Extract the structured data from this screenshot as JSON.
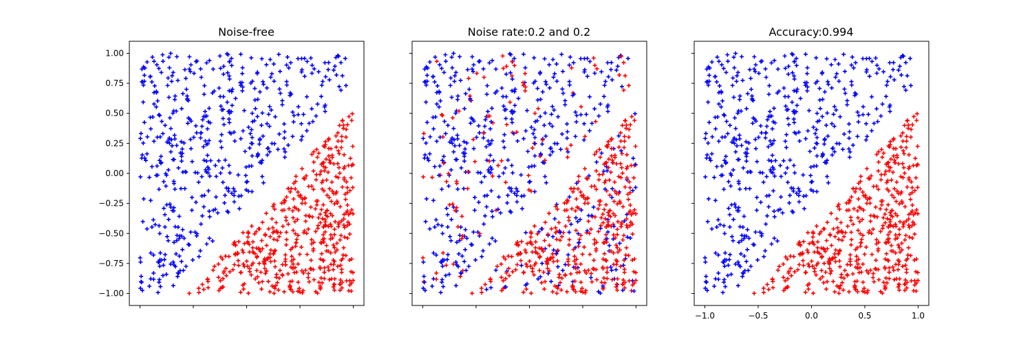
{
  "colors": {
    "class_blue": "#0000ff",
    "class_red": "#ff0000"
  },
  "chart_data": [
    {
      "type": "scatter",
      "title": "Noise-free",
      "marker": "plus",
      "xlim": [
        -1.1,
        1.1
      ],
      "ylim": [
        -1.1,
        1.1
      ],
      "x_ticks": [
        -1.0,
        -0.5,
        0.0,
        0.5,
        1.0
      ],
      "x_tick_labels_shown": false,
      "y_ticks": [
        -1.0,
        -0.75,
        -0.5,
        -0.25,
        0.0,
        0.25,
        0.5,
        0.75,
        1.0
      ],
      "y_tick_labels": [
        "−1.00",
        "−0.75",
        "−0.50",
        "−0.25",
        "0.00",
        "0.25",
        "0.50",
        "0.75",
        "1.00"
      ],
      "grid": false,
      "class_boundary": {
        "description": "y = x - 0.35",
        "gap": "no points between y = x - 0.45 and y = x - 0.25"
      },
      "series": [
        {
          "color": "#0000ff",
          "region": "above line y = x - 0.25",
          "approx_count": 500
        },
        {
          "color": "#ff0000",
          "region": "below line y = x - 0.45",
          "approx_count": 500
        }
      ],
      "point_seed": 11,
      "label_noise": [
        0,
        0
      ]
    },
    {
      "type": "scatter",
      "title": "Noise rate:0.2 and 0.2",
      "marker": "plus",
      "xlim": [
        -1.1,
        1.1
      ],
      "ylim": [
        -1.1,
        1.1
      ],
      "x_ticks": [
        -1.0,
        -0.5,
        0.0,
        0.5,
        1.0
      ],
      "x_tick_labels_shown": false,
      "y_ticks": [
        -1.0,
        -0.75,
        -0.5,
        -0.25,
        0.0,
        0.25,
        0.5,
        0.75,
        1.0
      ],
      "y_tick_labels_shown": false,
      "grid": false,
      "class_boundary": {
        "description": "y = x - 0.35",
        "gap": "no points between y = x - 0.45 and y = x - 0.25"
      },
      "series": [
        {
          "color": "#0000ff",
          "region": "mostly above line, 20% flipped",
          "approx_count": 500
        },
        {
          "color": "#ff0000",
          "region": "mostly below line, 20% flipped",
          "approx_count": 500
        }
      ],
      "point_seed": 11,
      "label_noise": [
        0.2,
        0.2
      ]
    },
    {
      "type": "scatter",
      "title": "Accuracy:0.994",
      "marker": "plus",
      "xlim": [
        -1.1,
        1.1
      ],
      "ylim": [
        -1.1,
        1.1
      ],
      "x_ticks": [
        -1.0,
        -0.5,
        0.0,
        0.5,
        1.0
      ],
      "x_tick_labels": [
        "−1.0",
        "−0.5",
        "0.0",
        "0.5",
        "1.0"
      ],
      "y_ticks": [
        -1.0,
        -0.75,
        -0.5,
        -0.25,
        0.0,
        0.25,
        0.5,
        0.75,
        1.0
      ],
      "y_tick_labels_shown": false,
      "grid": false,
      "class_boundary": {
        "description": "y = x - 0.35",
        "gap": "no points between y = x - 0.45 and y = x - 0.25"
      },
      "series": [
        {
          "color": "#0000ff",
          "region": "above line y = x - 0.25",
          "approx_count": 500
        },
        {
          "color": "#ff0000",
          "region": "below line y = x - 0.45",
          "approx_count": 500
        }
      ],
      "point_seed": 11,
      "label_noise": [
        0,
        0
      ]
    }
  ]
}
